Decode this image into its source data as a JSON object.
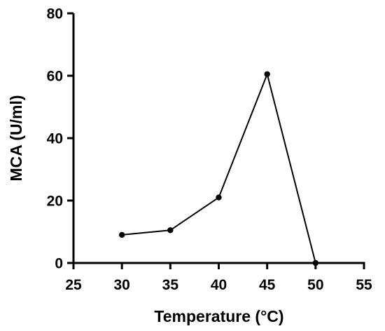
{
  "chart_data": {
    "type": "line",
    "title": "",
    "xlabel": "Temperature (°C)",
    "ylabel": "MCA (U/ml)",
    "xlim": [
      25,
      55
    ],
    "ylim": [
      0,
      80
    ],
    "x_ticks": [
      "25",
      "30",
      "35",
      "40",
      "45",
      "50",
      "55"
    ],
    "y_ticks": [
      "0",
      "20",
      "40",
      "60",
      "80"
    ],
    "grid": false,
    "legend": "none",
    "series": [
      {
        "x": [
          30,
          35,
          40,
          45,
          50
        ],
        "y": [
          9,
          10.5,
          21,
          60.5,
          0
        ]
      }
    ],
    "colors": {
      "line": "#000000",
      "marker": "#000000",
      "axis": "#000000"
    }
  }
}
